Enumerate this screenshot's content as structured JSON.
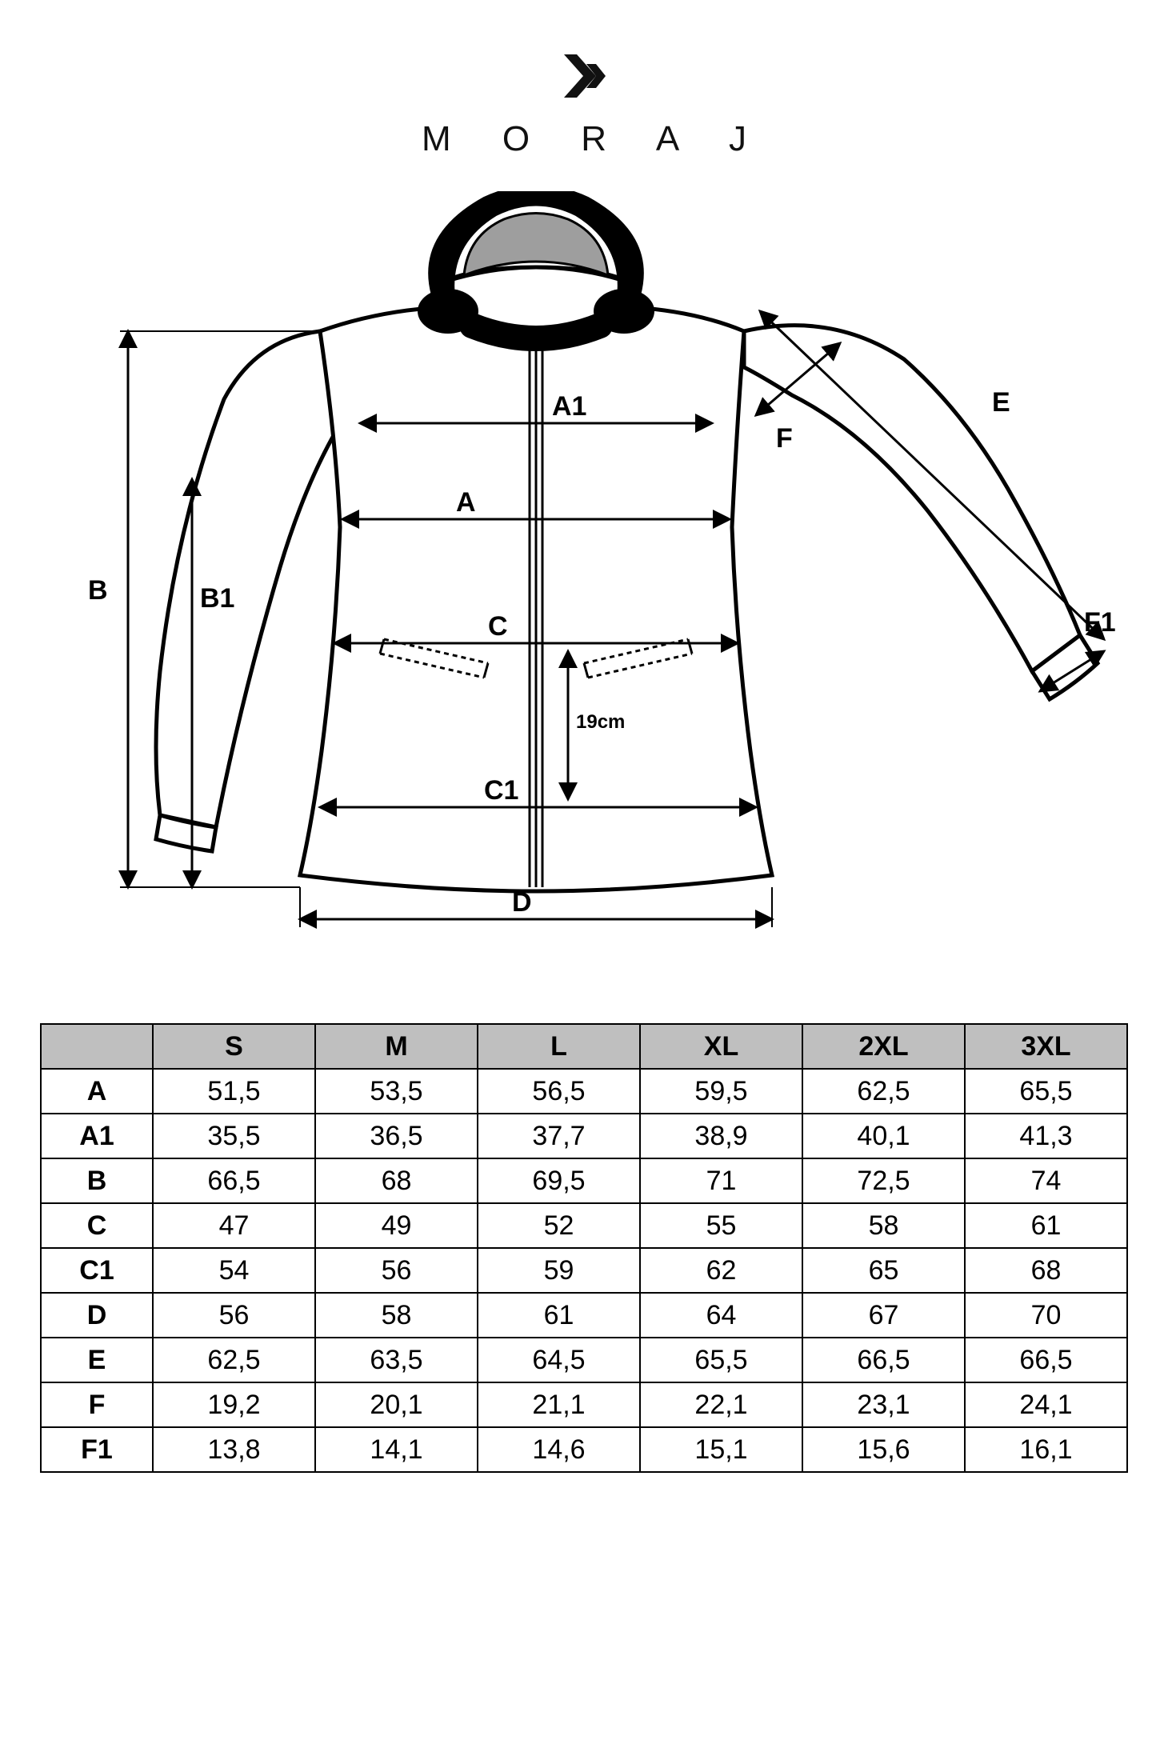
{
  "brand": {
    "name": "M O R A J"
  },
  "diagram": {
    "labels": {
      "A": "A",
      "A1": "A1",
      "B": "B",
      "B1": "B1",
      "C": "C",
      "C1": "C1",
      "D": "D",
      "E": "E",
      "F": "F",
      "F1": "F1",
      "pocket_depth": "19cm"
    },
    "colors": {
      "stroke": "#000000",
      "hood_trim": "#000000",
      "hood_inner": "#9e9e9e",
      "body_fill": "#ffffff",
      "background": "#ffffff"
    },
    "stroke_width": 5,
    "arrow_stroke_width": 3
  },
  "table": {
    "header_bg": "#bfbfbf",
    "border_color": "#000000",
    "columns": [
      "S",
      "M",
      "L",
      "XL",
      "2XL",
      "3XL"
    ],
    "rows": [
      {
        "label": "A",
        "values": [
          "51,5",
          "53,5",
          "56,5",
          "59,5",
          "62,5",
          "65,5"
        ]
      },
      {
        "label": "A1",
        "values": [
          "35,5",
          "36,5",
          "37,7",
          "38,9",
          "40,1",
          "41,3"
        ]
      },
      {
        "label": "B",
        "values": [
          "66,5",
          "68",
          "69,5",
          "71",
          "72,5",
          "74"
        ]
      },
      {
        "label": "C",
        "values": [
          "47",
          "49",
          "52",
          "55",
          "58",
          "61"
        ]
      },
      {
        "label": "C1",
        "values": [
          "54",
          "56",
          "59",
          "62",
          "65",
          "68"
        ]
      },
      {
        "label": "D",
        "values": [
          "56",
          "58",
          "61",
          "64",
          "67",
          "70"
        ]
      },
      {
        "label": "E",
        "values": [
          "62,5",
          "63,5",
          "64,5",
          "65,5",
          "66,5",
          "66,5"
        ]
      },
      {
        "label": "F",
        "values": [
          "19,2",
          "20,1",
          "21,1",
          "22,1",
          "23,1",
          "24,1"
        ]
      },
      {
        "label": "F1",
        "values": [
          "13,8",
          "14,1",
          "14,6",
          "15,1",
          "15,6",
          "16,1"
        ]
      }
    ]
  }
}
